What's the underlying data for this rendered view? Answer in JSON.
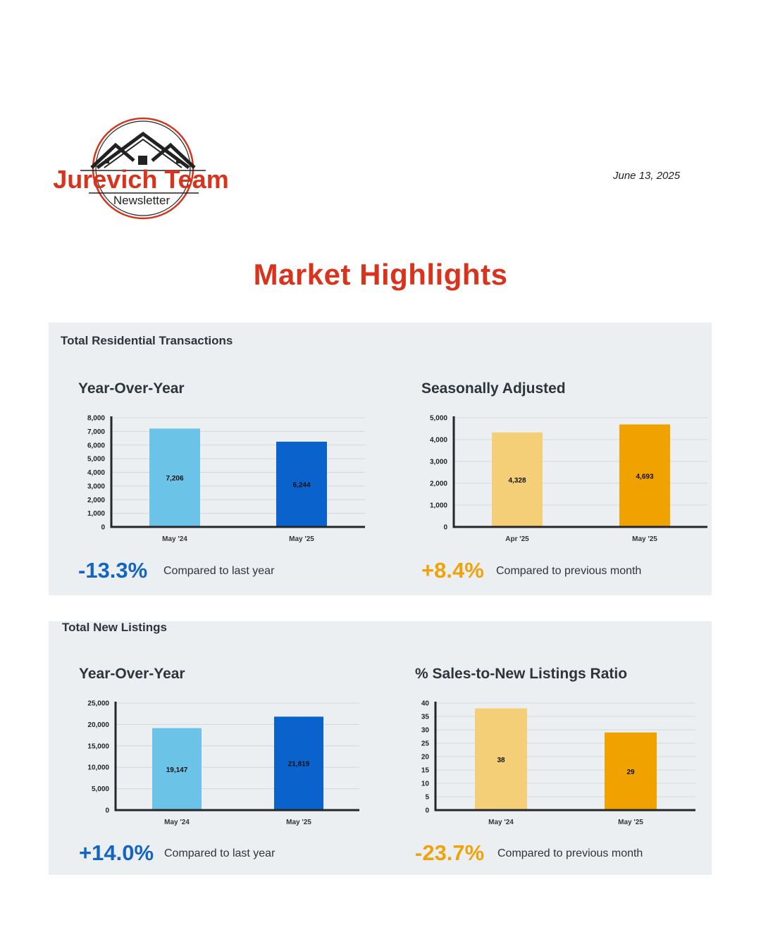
{
  "header": {
    "logo_title": "Jurevich Team",
    "logo_subtitle": "Newsletter",
    "date": "June 13, 2025"
  },
  "page_title": "Market Highlights",
  "colors": {
    "title_red": "#d8341d",
    "light_blue": "#6cc3e8",
    "dark_blue": "#0a63cc",
    "light_gold": "#f5cf78",
    "gold": "#f0a300",
    "change_blue": "#1565c0",
    "change_gold": "#f0a20a",
    "panel_bg": "#eceff2"
  },
  "sections": [
    {
      "title": "Total Residential Transactions",
      "charts": [
        {
          "title": "Year-Over-Year",
          "change": "-13.3%",
          "change_label": "Compared to last year"
        },
        {
          "title": "Seasonally Adjusted",
          "change": "+8.4%",
          "change_label": "Compared to previous month"
        }
      ]
    },
    {
      "title": "Total New Listings",
      "charts": [
        {
          "title": "Year-Over-Year",
          "change": "+14.0%",
          "change_label": "Compared to last year"
        },
        {
          "title": "% Sales-to-New Listings Ratio",
          "change": "-23.7%",
          "change_label": "Compared to previous month"
        }
      ]
    }
  ],
  "chart_data": [
    {
      "type": "bar",
      "title": "Year-Over-Year",
      "categories": [
        "May '24",
        "May '25"
      ],
      "values": [
        7206,
        6244
      ],
      "value_labels": [
        "7,206",
        "6,244"
      ],
      "ylim": [
        0,
        8000
      ],
      "yticks": [
        0,
        1000,
        2000,
        3000,
        4000,
        5000,
        6000,
        7000,
        8000
      ],
      "ytick_labels": [
        "0",
        "1,000",
        "2,000",
        "3,000",
        "4,000",
        "5,000",
        "6,000",
        "7,000",
        "8,000"
      ],
      "bar_colors": [
        "#6cc3e8",
        "#0a63cc"
      ],
      "grid": true
    },
    {
      "type": "bar",
      "title": "Seasonally Adjusted",
      "categories": [
        "Apr '25",
        "May '25"
      ],
      "values": [
        4328,
        4693
      ],
      "value_labels": [
        "4,328",
        "4,693"
      ],
      "ylim": [
        0,
        5000
      ],
      "yticks": [
        0,
        1000,
        2000,
        3000,
        4000,
        5000
      ],
      "ytick_labels": [
        "0",
        "1,000",
        "2,000",
        "3,000",
        "4,000",
        "5,000"
      ],
      "bar_colors": [
        "#f5cf78",
        "#f0a300"
      ],
      "grid": true
    },
    {
      "type": "bar",
      "title": "Year-Over-Year",
      "categories": [
        "May '24",
        "May '25"
      ],
      "values": [
        19147,
        21819
      ],
      "value_labels": [
        "19,147",
        "21,819"
      ],
      "ylim": [
        0,
        25000
      ],
      "yticks": [
        0,
        5000,
        10000,
        15000,
        20000,
        25000
      ],
      "ytick_labels": [
        "0",
        "5,000",
        "10,000",
        "15,000",
        "20,000",
        "25,000"
      ],
      "bar_colors": [
        "#6cc3e8",
        "#0a63cc"
      ],
      "grid": true
    },
    {
      "type": "bar",
      "title": "% Sales-to-New Listings Ratio",
      "categories": [
        "May '24",
        "May '25"
      ],
      "values": [
        38,
        29
      ],
      "value_labels": [
        "38",
        "29"
      ],
      "ylim": [
        0,
        40
      ],
      "yticks": [
        0,
        5,
        10,
        15,
        20,
        25,
        30,
        35,
        40
      ],
      "ytick_labels": [
        "0",
        "5",
        "10",
        "15",
        "20",
        "25",
        "30",
        "35",
        "40"
      ],
      "bar_colors": [
        "#f5cf78",
        "#f0a300"
      ],
      "grid": true
    }
  ]
}
